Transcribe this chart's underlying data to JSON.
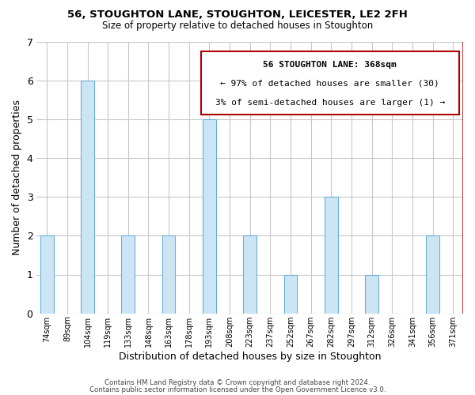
{
  "title": "56, STOUGHTON LANE, STOUGHTON, LEICESTER, LE2 2FH",
  "subtitle": "Size of property relative to detached houses in Stoughton",
  "xlabel": "Distribution of detached houses by size in Stoughton",
  "ylabel": "Number of detached properties",
  "bins": [
    "74sqm",
    "89sqm",
    "104sqm",
    "119sqm",
    "133sqm",
    "148sqm",
    "163sqm",
    "178sqm",
    "193sqm",
    "208sqm",
    "223sqm",
    "237sqm",
    "252sqm",
    "267sqm",
    "282sqm",
    "297sqm",
    "312sqm",
    "326sqm",
    "341sqm",
    "356sqm",
    "371sqm"
  ],
  "values": [
    2,
    0,
    6,
    0,
    2,
    0,
    2,
    0,
    5,
    0,
    2,
    0,
    1,
    0,
    3,
    0,
    1,
    0,
    0,
    2,
    0
  ],
  "bar_color": "#cce5f5",
  "bar_edge_color": "#6aafd6",
  "highlight_line_color": "#aa0000",
  "ylim": [
    0,
    7
  ],
  "yticks": [
    0,
    1,
    2,
    3,
    4,
    5,
    6,
    7
  ],
  "annotation_title": "56 STOUGHTON LANE: 368sqm",
  "annotation_line1": "← 97% of detached houses are smaller (30)",
  "annotation_line2": "3% of semi-detached houses are larger (1) →",
  "annotation_box_color": "#aa0000",
  "footer_line1": "Contains HM Land Registry data © Crown copyright and database right 2024.",
  "footer_line2": "Contains public sector information licensed under the Open Government Licence v3.0.",
  "background_color": "#ffffff",
  "grid_color": "#c8c8c8"
}
